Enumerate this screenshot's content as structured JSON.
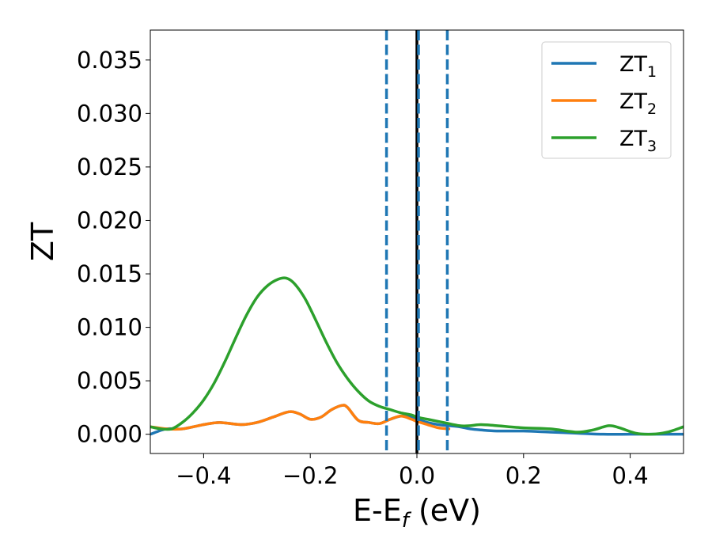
{
  "chart_data": {
    "type": "line",
    "title": "",
    "xlabel_main": "E-E",
    "xlabel_sub": "f",
    "xlabel_unit": " (eV)",
    "ylabel": "ZT",
    "xlim": [
      -0.5,
      0.5
    ],
    "ylim": [
      -0.0018,
      0.0378
    ],
    "x_ticks": [
      -0.4,
      -0.2,
      0.0,
      0.2,
      0.4
    ],
    "x_tick_labels": [
      "−0.4",
      "−0.2",
      "0.0",
      "0.2",
      "0.4"
    ],
    "y_ticks": [
      0.0,
      0.005,
      0.01,
      0.015,
      0.02,
      0.025,
      0.03,
      0.035
    ],
    "y_tick_labels": [
      "0.000",
      "0.005",
      "0.010",
      "0.015",
      "0.020",
      "0.025",
      "0.030",
      "0.035"
    ],
    "grid": false,
    "legend_position": "top-right",
    "vertical_lines": [
      {
        "x": -0.057,
        "style": "dashed",
        "color": "#1f77b4"
      },
      {
        "x": 0.057,
        "style": "dashed",
        "color": "#1f77b4"
      },
      {
        "x": 0.0,
        "style": "solid",
        "color": "#000000"
      },
      {
        "x": 0.003,
        "style": "dashed",
        "color": "#1f77b4"
      }
    ],
    "series": [
      {
        "name_main": "ZT",
        "name_sub": "1",
        "color": "#1f77b4",
        "x": [
          -0.5,
          -0.47,
          -0.44,
          -0.4,
          -0.37,
          -0.33,
          -0.3,
          -0.27,
          -0.24,
          -0.22,
          -0.2,
          -0.18,
          -0.16,
          -0.14,
          -0.13,
          -0.11,
          -0.09,
          -0.07,
          -0.05,
          -0.03,
          -0.01,
          0.0,
          0.02,
          0.04,
          0.06,
          0.08,
          0.1,
          0.12,
          0.15,
          0.2,
          0.25,
          0.3,
          0.35,
          0.4,
          0.45,
          0.5
        ],
        "y": [
          0.0,
          0.0005,
          0.0005,
          0.0009,
          0.0011,
          0.0009,
          0.0011,
          0.0016,
          0.0021,
          0.0019,
          0.0014,
          0.0016,
          0.0023,
          0.0027,
          0.0025,
          0.0013,
          0.0011,
          0.001,
          0.0014,
          0.0017,
          0.0016,
          0.0014,
          0.0011,
          0.0009,
          0.0008,
          0.0007,
          0.0005,
          0.0004,
          0.0003,
          0.0003,
          0.0002,
          0.0001,
          0.0,
          0.0,
          0.0,
          0.0
        ]
      },
      {
        "name_main": "ZT",
        "name_sub": "2",
        "color": "#ff7f0e",
        "x": [
          -0.5,
          -0.47,
          -0.44,
          -0.4,
          -0.37,
          -0.33,
          -0.3,
          -0.27,
          -0.24,
          -0.22,
          -0.2,
          -0.18,
          -0.16,
          -0.14,
          -0.13,
          -0.11,
          -0.09,
          -0.07,
          -0.05,
          -0.03,
          -0.01,
          0.0,
          0.02,
          0.04,
          0.06
        ],
        "y": [
          0.0007,
          0.0005,
          0.0005,
          0.0009,
          0.0011,
          0.0009,
          0.0011,
          0.0016,
          0.0021,
          0.0019,
          0.0014,
          0.0016,
          0.0023,
          0.0027,
          0.0025,
          0.0013,
          0.0011,
          0.001,
          0.0014,
          0.0017,
          0.0014,
          0.0012,
          0.0009,
          0.0006,
          0.0005
        ]
      },
      {
        "name_main": "ZT",
        "name_sub": "3",
        "color": "#2ca02c",
        "x": [
          -0.5,
          -0.48,
          -0.46,
          -0.44,
          -0.42,
          -0.4,
          -0.38,
          -0.36,
          -0.34,
          -0.32,
          -0.3,
          -0.28,
          -0.26,
          -0.245,
          -0.23,
          -0.21,
          -0.19,
          -0.17,
          -0.15,
          -0.13,
          -0.11,
          -0.09,
          -0.07,
          -0.05,
          -0.03,
          -0.01,
          0.0,
          0.02,
          0.05,
          0.08,
          0.1,
          0.12,
          0.15,
          0.2,
          0.25,
          0.3,
          0.33,
          0.36,
          0.38,
          0.41,
          0.44,
          0.47,
          0.5
        ],
        "y": [
          0.0007,
          0.0005,
          0.0005,
          0.0011,
          0.002,
          0.0032,
          0.0048,
          0.0068,
          0.009,
          0.0111,
          0.0128,
          0.0139,
          0.0145,
          0.0146,
          0.0141,
          0.0127,
          0.0107,
          0.0086,
          0.0067,
          0.0052,
          0.004,
          0.0031,
          0.0026,
          0.0023,
          0.002,
          0.0018,
          0.0016,
          0.0014,
          0.0011,
          0.0008,
          0.0008,
          0.0009,
          0.0008,
          0.0006,
          0.0005,
          0.0002,
          0.0004,
          0.0008,
          0.0006,
          0.0001,
          0.0,
          0.0002,
          0.0007
        ]
      }
    ]
  }
}
